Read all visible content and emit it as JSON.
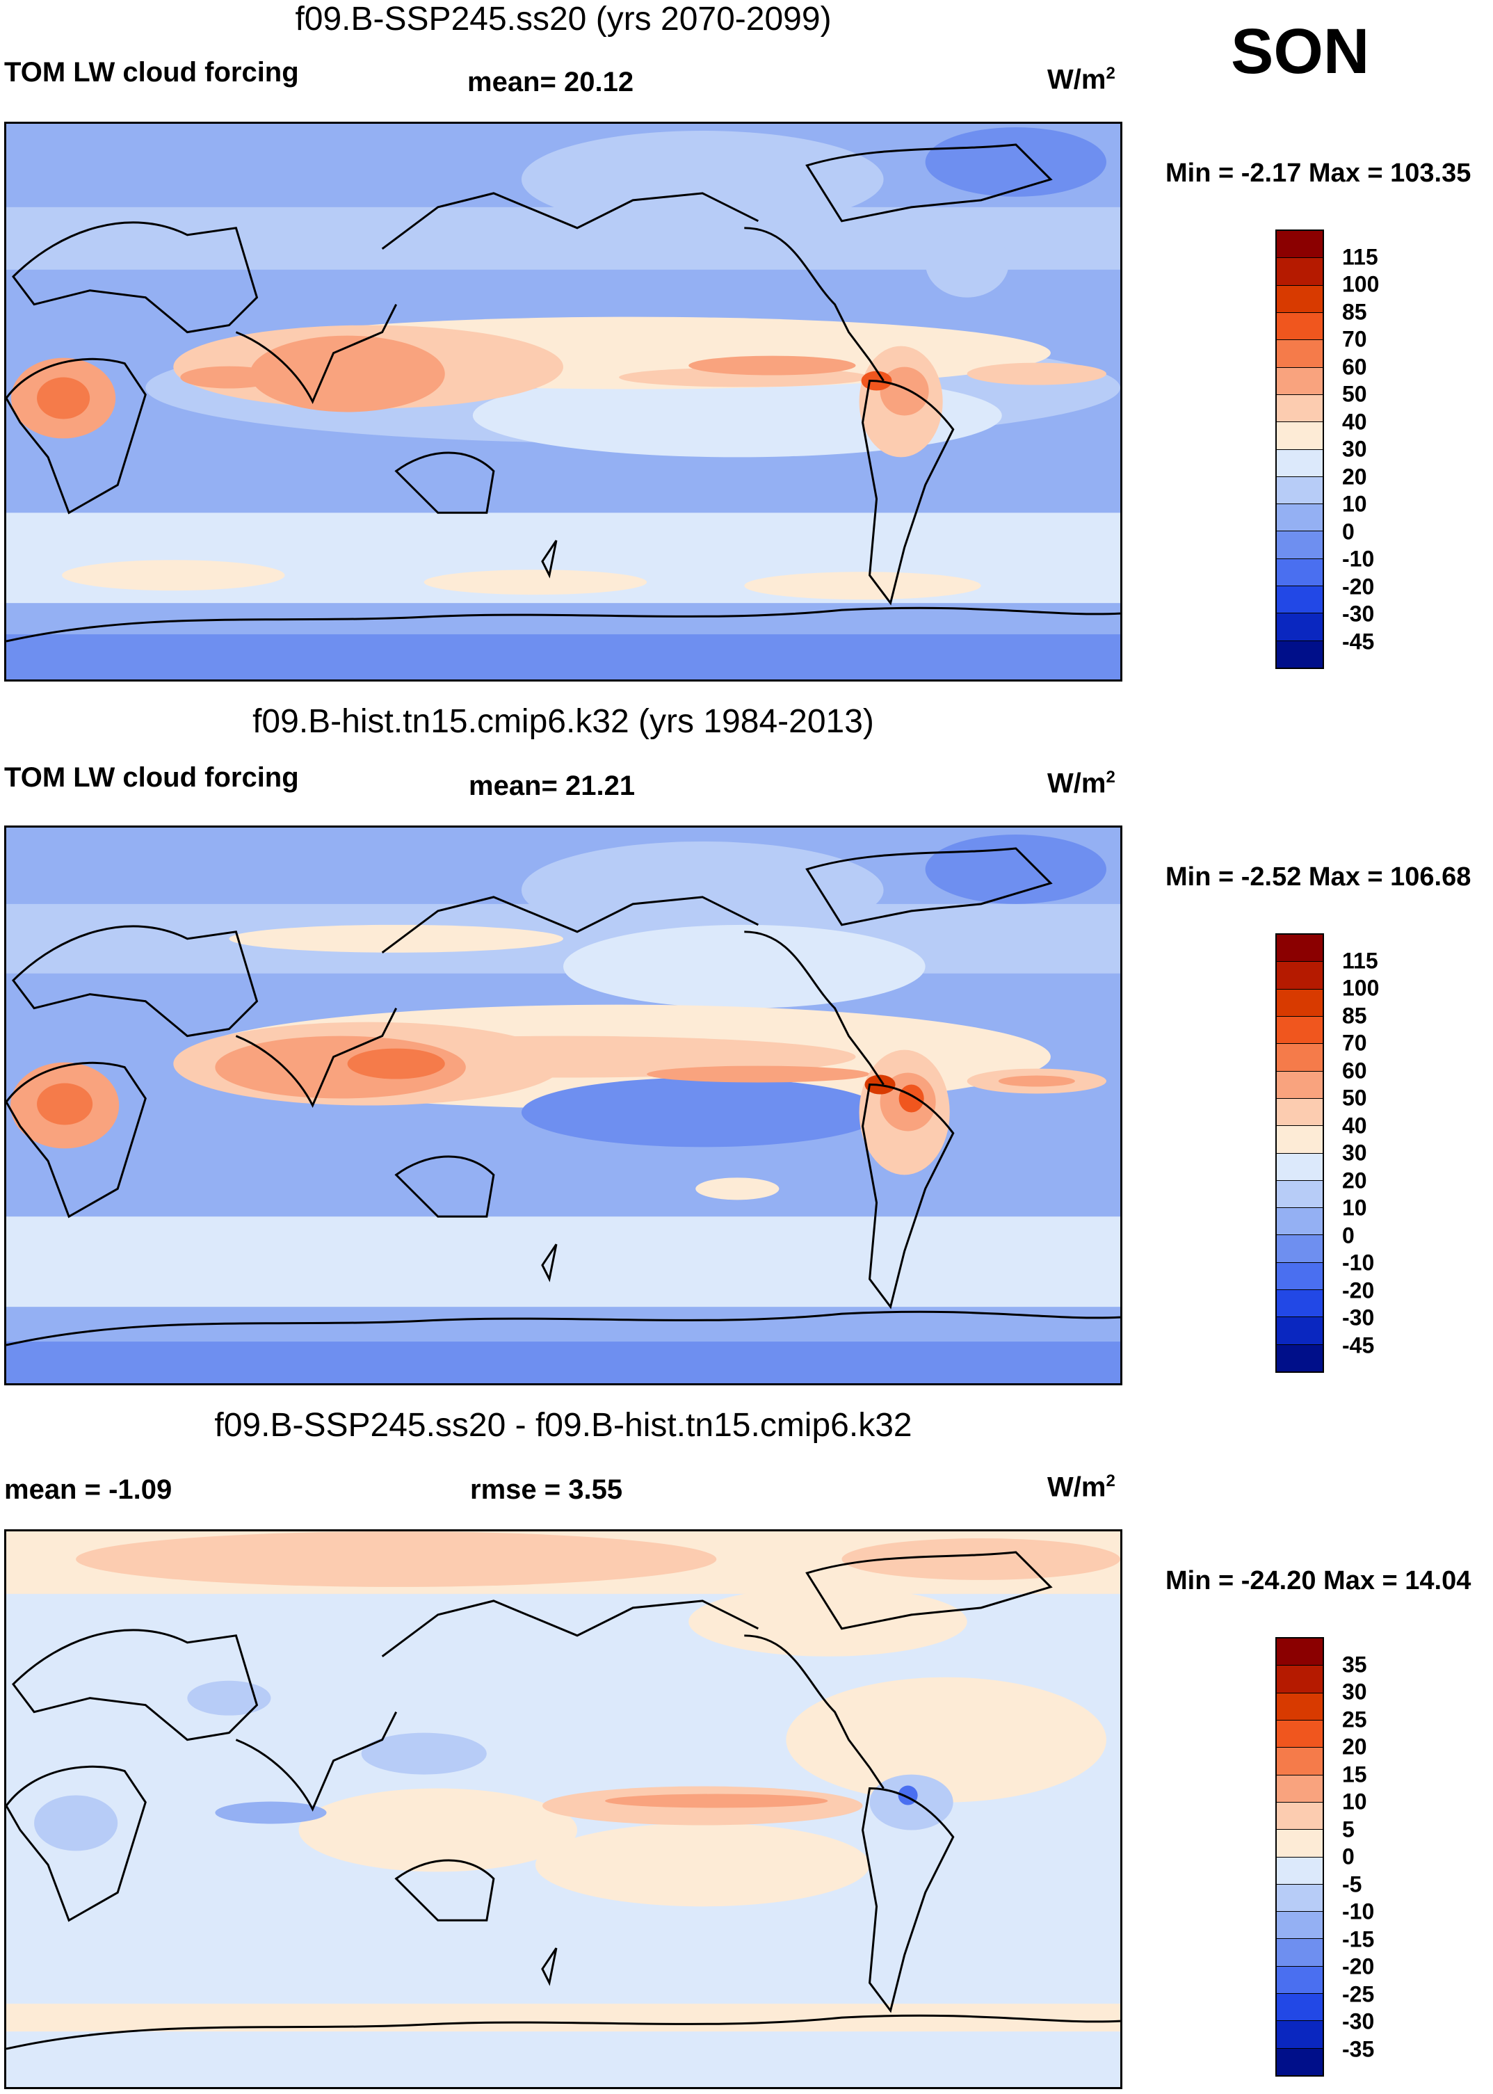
{
  "season": "SON",
  "panels": [
    {
      "title": "f09.B-SSP245.ss20 (yrs 2070-2099)",
      "left_label": "TOM LW cloud forcing",
      "mid_label": "mean=  20.12",
      "units_base": "W/m",
      "units_exp": "2",
      "minmax": "Min =  -2.17 Max = 103.35",
      "colorbar_levels": [
        "115",
        "100",
        "85",
        "70",
        "60",
        "50",
        "40",
        "30",
        "20",
        "10",
        "0",
        "-10",
        "-20",
        "-30",
        "-45"
      ],
      "colorbar_colors": [
        "#8b0000",
        "#b51a00",
        "#d83a00",
        "#f0561e",
        "#f57b4a",
        "#f9a37e",
        "#fcccb0",
        "#fdebd6",
        "#dce9fb",
        "#b7ccf7",
        "#94b0f3",
        "#6e8ff0",
        "#4a6ff0",
        "#2248e6",
        "#0a27c0",
        "#000f8a"
      ]
    },
    {
      "title": "f09.B-hist.tn15.cmip6.k32 (yrs 1984-2013)",
      "left_label": "TOM LW cloud forcing",
      "mid_label": "mean=  21.21",
      "units_base": "W/m",
      "units_exp": "2",
      "minmax": "Min =  -2.52 Max = 106.68",
      "colorbar_levels": [
        "115",
        "100",
        "85",
        "70",
        "60",
        "50",
        "40",
        "30",
        "20",
        "10",
        "0",
        "-10",
        "-20",
        "-30",
        "-45"
      ],
      "colorbar_colors": [
        "#8b0000",
        "#b51a00",
        "#d83a00",
        "#f0561e",
        "#f57b4a",
        "#f9a37e",
        "#fcccb0",
        "#fdebd6",
        "#dce9fb",
        "#b7ccf7",
        "#94b0f3",
        "#6e8ff0",
        "#4a6ff0",
        "#2248e6",
        "#0a27c0",
        "#000f8a"
      ]
    },
    {
      "title": "f09.B-SSP245.ss20 - f09.B-hist.tn15.cmip6.k32",
      "left_label": "mean =  -1.09",
      "mid_label": "rmse =   3.55",
      "units_base": "W/m",
      "units_exp": "2",
      "minmax": "Min = -24.20 Max =  14.04",
      "colorbar_levels": [
        "35",
        "30",
        "25",
        "20",
        "15",
        "10",
        "5",
        "0",
        "-5",
        "-10",
        "-15",
        "-20",
        "-25",
        "-30",
        "-35"
      ],
      "colorbar_colors": [
        "#8b0000",
        "#b51a00",
        "#d83a00",
        "#f0561e",
        "#f57b4a",
        "#f9a37e",
        "#fcccb0",
        "#fdebd6",
        "#dce9fb",
        "#b7ccf7",
        "#94b0f3",
        "#6e8ff0",
        "#4a6ff0",
        "#2248e6",
        "#0a27c0",
        "#000f8a"
      ]
    }
  ]
}
